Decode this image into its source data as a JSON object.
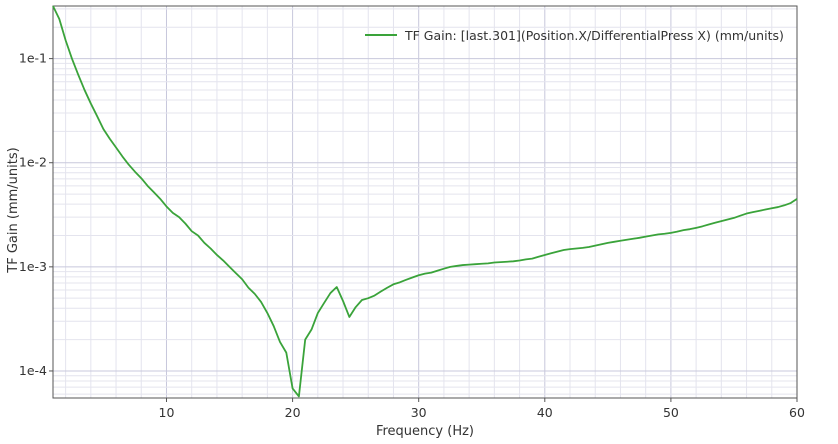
{
  "chart_data": {
    "type": "line",
    "title": "",
    "xlabel": "Frequency (Hz)",
    "ylabel": "TF Gain  (mm/units)",
    "xlim": [
      1,
      60
    ],
    "ylim": [
      5.5e-05,
      0.32
    ],
    "yscale": "log",
    "grid": true,
    "legend_position": "top-right",
    "x_ticks": [
      10,
      20,
      30,
      40,
      50,
      60
    ],
    "x_tick_labels": [
      "10",
      "20",
      "30",
      "40",
      "50",
      "60"
    ],
    "y_ticks": [
      0.1,
      0.01,
      0.001,
      0.0001
    ],
    "y_tick_labels": [
      "1e-1",
      "1e-2",
      "1e-3",
      "1e-4"
    ],
    "colors": {
      "series": "#3aa33a",
      "grid_major": "#c8c8dc",
      "grid_minor": "#e4e4ee"
    },
    "series": [
      {
        "name": "TF Gain: [last.301](Position.X/DifferentialPress X) (mm/units)",
        "color": "#3aa33a",
        "x": [
          1,
          1.5,
          2,
          2.5,
          3,
          3.5,
          4,
          4.5,
          5,
          5.5,
          6,
          6.5,
          7,
          7.5,
          8,
          8.5,
          9,
          9.5,
          10,
          10.5,
          11,
          11.5,
          12,
          12.5,
          13,
          13.5,
          14,
          14.5,
          15,
          15.5,
          16,
          16.5,
          17,
          17.5,
          18,
          18.5,
          19,
          19.5,
          20,
          20.5,
          21,
          21.5,
          22,
          22.5,
          23,
          23.5,
          24,
          24.5,
          25,
          25.5,
          26,
          26.5,
          27,
          27.5,
          28,
          28.5,
          29,
          29.5,
          30,
          30.5,
          31,
          31.5,
          32,
          32.5,
          33,
          33.5,
          34,
          34.5,
          35,
          35.5,
          36,
          36.5,
          37,
          37.5,
          38,
          38.5,
          39,
          39.5,
          40,
          40.5,
          41,
          41.5,
          42,
          42.5,
          43,
          43.5,
          44,
          44.5,
          45,
          45.5,
          46,
          46.5,
          47,
          47.5,
          48,
          48.5,
          49,
          49.5,
          50,
          50.5,
          51,
          51.5,
          52,
          52.5,
          53,
          53.5,
          54,
          54.5,
          55,
          55.5,
          56,
          56.5,
          57,
          57.5,
          58,
          58.5,
          59,
          59.5,
          60
        ],
        "y": [
          0.32,
          0.24,
          0.15,
          0.1,
          0.07,
          0.05,
          0.037,
          0.028,
          0.021,
          0.017,
          0.014,
          0.0115,
          0.0096,
          0.0082,
          0.0071,
          0.006,
          0.0052,
          0.0045,
          0.0038,
          0.0033,
          0.003,
          0.0026,
          0.0022,
          0.002,
          0.0017,
          0.0015,
          0.0013,
          0.00115,
          0.001,
          0.00087,
          0.00076,
          0.00063,
          0.00055,
          0.00046,
          0.00036,
          0.00027,
          0.00019,
          0.00015,
          6.8e-05,
          5.7e-05,
          0.0002,
          0.00025,
          0.00036,
          0.00045,
          0.00056,
          0.00064,
          0.00047,
          0.00033,
          0.00041,
          0.00048,
          0.0005,
          0.00053,
          0.00058,
          0.00063,
          0.00068,
          0.00071,
          0.00075,
          0.00079,
          0.00083,
          0.00086,
          0.00088,
          0.00092,
          0.00096,
          0.001,
          0.00102,
          0.00104,
          0.00105,
          0.00106,
          0.00107,
          0.00108,
          0.0011,
          0.00111,
          0.00112,
          0.00113,
          0.00115,
          0.00118,
          0.0012,
          0.00125,
          0.0013,
          0.00135,
          0.0014,
          0.00145,
          0.00148,
          0.0015,
          0.00152,
          0.00155,
          0.0016,
          0.00165,
          0.0017,
          0.00174,
          0.00178,
          0.00182,
          0.00186,
          0.0019,
          0.00195,
          0.002,
          0.00205,
          0.00208,
          0.00212,
          0.00218,
          0.00225,
          0.0023,
          0.00237,
          0.00245,
          0.00255,
          0.00265,
          0.00275,
          0.00285,
          0.00295,
          0.0031,
          0.00325,
          0.00335,
          0.00345,
          0.00355,
          0.00365,
          0.00375,
          0.0039,
          0.0041,
          0.0045
        ]
      }
    ]
  }
}
